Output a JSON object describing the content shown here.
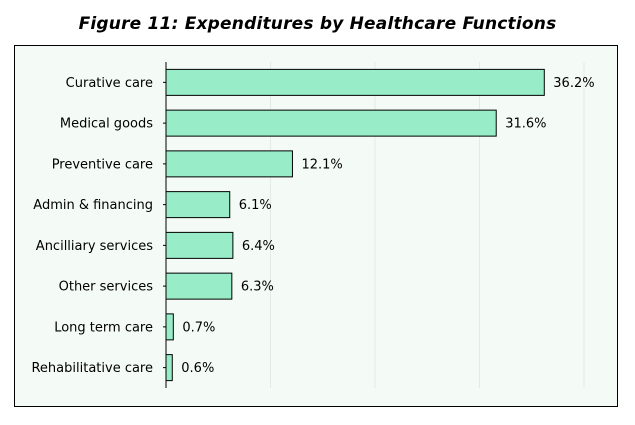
{
  "figure_title": "Figure 11: Expenditures by Healthcare Functions",
  "colors": {
    "bar_fill": "#98ecc8",
    "bar_stroke": "#000000",
    "plot_bg": "#f4fbf6",
    "grid": "#e4ebe6"
  },
  "chart_data": {
    "type": "bar",
    "orientation": "horizontal",
    "title": "Figure 11: Expenditures by Healthcare Functions",
    "xlabel": "",
    "ylabel": "",
    "unit": "%",
    "xlim": [
      0,
      40
    ],
    "grid": true,
    "categories": [
      "Curative care",
      "Medical goods",
      "Preventive care",
      "Admin & financing",
      "Ancilliary services",
      "Other services",
      "Long term care",
      "Rehabilitative care"
    ],
    "values": [
      36.2,
      31.6,
      12.1,
      6.1,
      6.4,
      6.3,
      0.7,
      0.6
    ],
    "value_labels": [
      "36.2%",
      "31.6%",
      "12.1%",
      "6.1%",
      "6.4%",
      "6.3%",
      "0.7%",
      "0.6%"
    ]
  }
}
